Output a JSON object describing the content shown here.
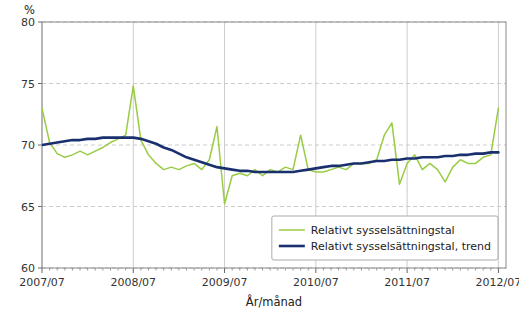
{
  "chart_data": {
    "type": "line",
    "xlabel": "År/månad",
    "ylabel": "%",
    "categories": [
      "2007/07",
      null,
      null,
      null,
      null,
      null,
      null,
      null,
      null,
      null,
      null,
      null,
      "2008/07",
      null,
      null,
      null,
      null,
      null,
      null,
      null,
      null,
      null,
      null,
      null,
      "2009/07",
      null,
      null,
      null,
      null,
      null,
      null,
      null,
      null,
      null,
      null,
      null,
      "2010/07",
      null,
      null,
      null,
      null,
      null,
      null,
      null,
      null,
      null,
      null,
      null,
      "2011/07",
      null,
      null,
      null,
      null,
      null,
      null,
      null,
      null,
      null,
      null,
      null,
      "2012/07"
    ],
    "xlim": [
      0,
      61
    ],
    "ylim": [
      60,
      80
    ],
    "yticks": [
      60,
      65,
      70,
      75,
      80
    ],
    "grid": true,
    "legend": "lower right",
    "series": [
      {
        "name": "Relativt sysselsättningstal",
        "color": "#99cc44",
        "values": [
          73.0,
          70.2,
          69.3,
          69.0,
          69.2,
          69.5,
          69.2,
          69.5,
          69.8,
          70.2,
          70.5,
          70.8,
          74.8,
          70.4,
          69.2,
          68.5,
          68.0,
          68.2,
          68.0,
          68.3,
          68.5,
          68.0,
          68.8,
          71.5,
          65.2,
          67.5,
          67.7,
          67.5,
          68.0,
          67.5,
          68.0,
          67.8,
          68.2,
          68.0,
          70.8,
          68.0,
          67.8,
          67.8,
          68.0,
          68.2,
          68.0,
          68.5,
          68.5,
          68.5,
          68.8,
          70.8,
          71.8,
          66.8,
          68.5,
          69.2,
          68.0,
          68.5,
          68.0,
          67.0,
          68.2,
          68.8,
          68.5,
          68.5,
          69.0,
          69.2,
          73.0
        ]
      },
      {
        "name": "Relativt sysselsättningstal, trend",
        "color": "#1a2f6e",
        "values": [
          70.0,
          70.1,
          70.2,
          70.3,
          70.4,
          70.4,
          70.5,
          70.5,
          70.6,
          70.6,
          70.6,
          70.6,
          70.6,
          70.5,
          70.3,
          70.1,
          69.8,
          69.6,
          69.3,
          69.0,
          68.8,
          68.6,
          68.4,
          68.2,
          68.1,
          68.0,
          67.9,
          67.9,
          67.8,
          67.8,
          67.8,
          67.8,
          67.8,
          67.8,
          67.9,
          68.0,
          68.1,
          68.2,
          68.3,
          68.3,
          68.4,
          68.5,
          68.5,
          68.6,
          68.7,
          68.7,
          68.8,
          68.8,
          68.9,
          68.9,
          69.0,
          69.0,
          69.0,
          69.1,
          69.1,
          69.2,
          69.2,
          69.3,
          69.3,
          69.4,
          69.4
        ]
      }
    ]
  }
}
